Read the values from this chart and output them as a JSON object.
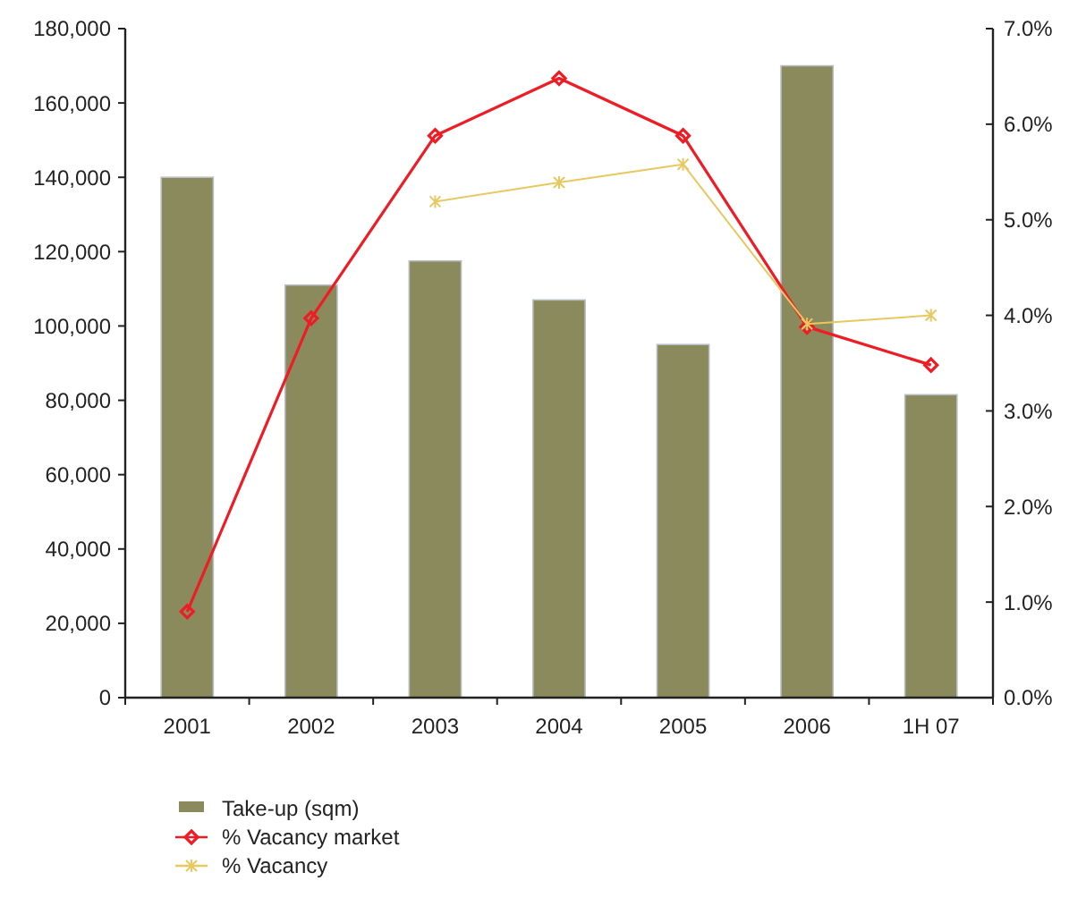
{
  "chart_data": {
    "type": "bar",
    "categories": [
      "2001",
      "2002",
      "2003",
      "2004",
      "2005",
      "2006",
      "1H 07"
    ],
    "series": [
      {
        "name": "Take-up (sqm)",
        "color": "#8b8a5c",
        "values": [
          140000,
          111000,
          117500,
          107000,
          95000,
          170000,
          81500
        ]
      },
      {
        "name": "% Vacancy market",
        "type": "line",
        "axis": "y2",
        "color": "#ee1c25",
        "marker": "diamond",
        "values": [
          0.9,
          3.97,
          5.88,
          6.48,
          5.88,
          3.88,
          3.48
        ]
      },
      {
        "name": "% Vacancy",
        "type": "line",
        "axis": "y2",
        "color": "#e8c860",
        "marker": "cross",
        "values": [
          null,
          null,
          5.19,
          5.39,
          5.58,
          3.91,
          4.0
        ]
      }
    ],
    "ylim": [
      0,
      180000
    ],
    "yticks": [
      {
        "value": 0,
        "label": "0"
      },
      {
        "value": 20000,
        "label": "20,000"
      },
      {
        "value": 40000,
        "label": "40,000"
      },
      {
        "value": 60000,
        "label": "60,000"
      },
      {
        "value": 80000,
        "label": "80,000"
      },
      {
        "value": 100000,
        "label": "100,000"
      },
      {
        "value": 120000,
        "label": "120,000"
      },
      {
        "value": 140000,
        "label": "140,000"
      },
      {
        "value": 160000,
        "label": "160,000"
      },
      {
        "value": 180000,
        "label": "180,000"
      }
    ],
    "y2lim": [
      0,
      7
    ],
    "y2ticks": [
      {
        "value": 0,
        "label": "0.0%"
      },
      {
        "value": 1,
        "label": "1.0%"
      },
      {
        "value": 2,
        "label": "2.0%"
      },
      {
        "value": 3,
        "label": "3.0%"
      },
      {
        "value": 4,
        "label": "4.0%"
      },
      {
        "value": 5,
        "label": "5.0%"
      },
      {
        "value": 6,
        "label": "6.0%"
      },
      {
        "value": 7,
        "label": "7.0%"
      }
    ],
    "grid": false,
    "legend": "bottom"
  }
}
